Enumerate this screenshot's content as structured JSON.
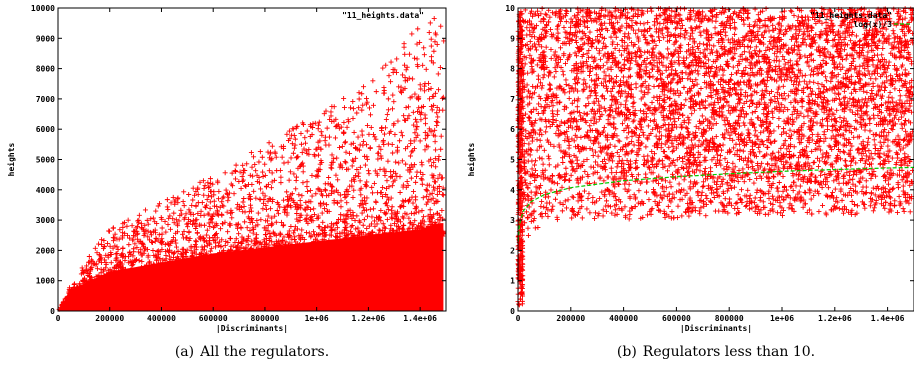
{
  "chart_data": [
    {
      "type": "scatter",
      "caption_label": "(a)",
      "caption_text": "All the regulators.",
      "xlabel": "|Discriminants|",
      "ylabel": "heights",
      "xlim": [
        0,
        1500000
      ],
      "ylim": [
        0,
        10000
      ],
      "xticks": [
        0,
        200000,
        400000,
        600000,
        800000,
        1000000,
        1200000,
        1400000
      ],
      "xtick_labels": [
        "0",
        "200000",
        "400000",
        "600000",
        "800000",
        "1e+06",
        "1.2e+06",
        "1.4e+06"
      ],
      "yticks": [
        0,
        1000,
        2000,
        3000,
        4000,
        5000,
        6000,
        7000,
        8000,
        9000,
        10000
      ],
      "ytick_labels": [
        "0",
        "1000",
        "2000",
        "3000",
        "4000",
        "5000",
        "6000",
        "7000",
        "8000",
        "9000",
        "10000"
      ],
      "legend": [
        "\"11_heights.data\""
      ],
      "legend_position": "top-right",
      "point_color": "#ff0000",
      "series": [
        {
          "name": "\"11_heights.data\"",
          "summary": [
            {
              "x": 50000,
              "y_dense_max": 700,
              "y_max": 900
            },
            {
              "x": 200000,
              "y_dense_max": 1300,
              "y_max": 2800
            },
            {
              "x": 400000,
              "y_dense_max": 1600,
              "y_max": 3600
            },
            {
              "x": 600000,
              "y_dense_max": 1900,
              "y_max": 4500
            },
            {
              "x": 800000,
              "y_dense_max": 2100,
              "y_max": 5500
            },
            {
              "x": 1000000,
              "y_dense_max": 2300,
              "y_max": 6500
            },
            {
              "x": 1200000,
              "y_dense_max": 2500,
              "y_max": 7500
            },
            {
              "x": 1400000,
              "y_dense_max": 2700,
              "y_max": 9500
            },
            {
              "x": 1480000,
              "y_dense_max": 2900,
              "y_max": 10000
            }
          ]
        }
      ]
    },
    {
      "type": "scatter",
      "caption_label": "(b)",
      "caption_text": "Regulators less than 10.",
      "xlabel": "|Discriminants|",
      "ylabel": "heights",
      "xlim": [
        0,
        1500000
      ],
      "ylim": [
        0,
        10
      ],
      "xticks": [
        0,
        200000,
        400000,
        600000,
        800000,
        1000000,
        1200000,
        1400000
      ],
      "xtick_labels": [
        "0",
        "200000",
        "400000",
        "600000",
        "800000",
        "1e+06",
        "1.2e+06",
        "1.4e+06"
      ],
      "yticks": [
        0,
        1,
        2,
        3,
        4,
        5,
        6,
        7,
        8,
        9,
        10
      ],
      "ytick_labels": [
        "0",
        "1",
        "2",
        "3",
        "4",
        "5",
        "6",
        "7",
        "8",
        "9",
        "10"
      ],
      "legend": [
        "\"11_heights.data\"",
        "log(x)/3"
      ],
      "legend_position": "top-right",
      "point_color": "#ff0000",
      "curve_color": "#00cc00",
      "curve": {
        "name": "log(x)/3",
        "x": [
          1000,
          5000,
          20000,
          50000,
          100000,
          200000,
          400000,
          600000,
          800000,
          1000000,
          1200000,
          1400000,
          1500000
        ],
        "y": [
          2.3,
          2.84,
          3.3,
          3.61,
          3.84,
          4.07,
          4.3,
          4.43,
          4.53,
          4.61,
          4.67,
          4.72,
          4.74
        ]
      },
      "series": [
        {
          "name": "\"11_heights.data\"",
          "summary": [
            {
              "x": 20000,
              "y_min": 2.0,
              "y_max": 10
            },
            {
              "x": 100000,
              "y_min": 3.0,
              "y_max": 10
            },
            {
              "x": 400000,
              "y_min": 3.0,
              "y_max": 10
            },
            {
              "x": 800000,
              "y_min": 3.1,
              "y_max": 10
            },
            {
              "x": 1400000,
              "y_min": 3.2,
              "y_max": 10
            }
          ]
        }
      ]
    }
  ]
}
